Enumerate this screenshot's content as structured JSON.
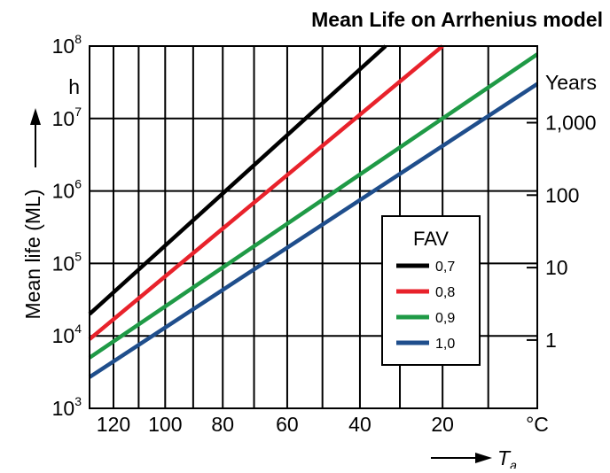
{
  "chart_data": {
    "type": "line",
    "title": "Mean Life on Arrhenius model",
    "ylabel": "Mean life (ML)",
    "y_unit": "h",
    "y_scale": "log",
    "ylim": [
      1000,
      100000000
    ],
    "y_ticks": [
      {
        "value": 1000,
        "base": "10",
        "exp": "3"
      },
      {
        "value": 10000,
        "base": "10",
        "exp": "4"
      },
      {
        "value": 100000,
        "base": "10",
        "exp": "5"
      },
      {
        "value": 1000000,
        "base": "10",
        "exp": "6"
      },
      {
        "value": 10000000,
        "base": "10",
        "exp": "7"
      },
      {
        "value": 100000000,
        "base": "10",
        "exp": "8"
      }
    ],
    "y2_label": "Years",
    "y2_ticks": [
      {
        "value": 8760,
        "label": "1"
      },
      {
        "value": 87600,
        "label": "10"
      },
      {
        "value": 876000,
        "label": "100"
      },
      {
        "value": 8760000,
        "label": "1,000"
      }
    ],
    "x_scale": "reciprocal_kelvin",
    "xlim": [
      130,
      0
    ],
    "x_gridlines": [
      130,
      120,
      110,
      100,
      90,
      80,
      70,
      60,
      50,
      40,
      30,
      20,
      10,
      0
    ],
    "x_tick_labels": [
      {
        "value": 120,
        "label": "120"
      },
      {
        "value": 100,
        "label": "100"
      },
      {
        "value": 80,
        "label": "80"
      },
      {
        "value": 60,
        "label": "60"
      },
      {
        "value": 40,
        "label": "40"
      },
      {
        "value": 20,
        "label": "20"
      },
      {
        "value": 0,
        "label": "°C"
      }
    ],
    "xlabel": "T",
    "xlabel_sub": "a",
    "grid": true,
    "legend": {
      "title": "FAV",
      "placement": "center-right"
    },
    "series": [
      {
        "name": "0,7",
        "color": "#000000",
        "x": [
          130,
          33.5
        ],
        "y": [
          20000,
          100000000
        ]
      },
      {
        "name": "0,8",
        "color": "#e8222b",
        "x": [
          130,
          20
        ],
        "y": [
          9000,
          100000000
        ]
      },
      {
        "name": "0,9",
        "color": "#1f9a46",
        "x": [
          130,
          0
        ],
        "y": [
          5000,
          77000000
        ]
      },
      {
        "name": "1,0",
        "color": "#1f4e8c",
        "x": [
          130,
          0
        ],
        "y": [
          2700,
          30000000
        ]
      }
    ]
  }
}
